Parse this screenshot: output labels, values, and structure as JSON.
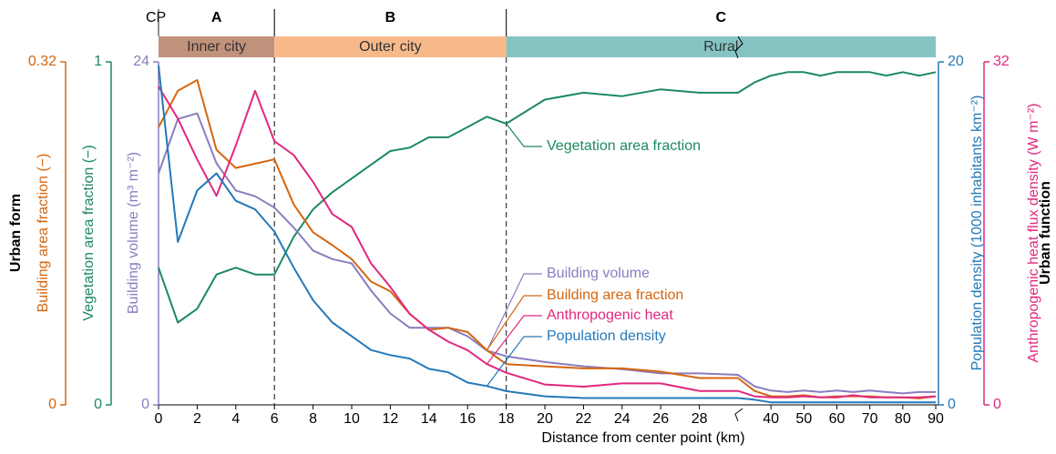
{
  "chart_data": {
    "type": "line",
    "xlabel": "Distance from center point (km)",
    "origin_label": "CP",
    "group_labels": {
      "left": "Urban form",
      "right": "Urban function"
    },
    "xlim": [
      0,
      90
    ],
    "x_segments": [
      [
        0,
        30
      ],
      [
        30,
        90
      ]
    ],
    "xticks": [
      0,
      2,
      4,
      6,
      8,
      10,
      12,
      14,
      16,
      18,
      20,
      22,
      24,
      26,
      28,
      40,
      50,
      60,
      70,
      80,
      90
    ],
    "regions": [
      {
        "label": "A",
        "name": "Inner city",
        "range": [
          0,
          6
        ],
        "color": "#c0917b"
      },
      {
        "label": "B",
        "name": "Outer city",
        "range": [
          6,
          18
        ],
        "color": "#f8b98a"
      },
      {
        "label": "C",
        "name": "Rural",
        "range": [
          18,
          90
        ],
        "color": "#86c4c4"
      }
    ],
    "axes": [
      {
        "label": "Building area fraction (−)",
        "ylim": [
          0,
          0.32
        ],
        "yticks": [
          0,
          0.32
        ],
        "color": "#d5660f"
      },
      {
        "label": "Vegetation area fraction (−)",
        "ylim": [
          0,
          1
        ],
        "yticks": [
          0,
          1
        ],
        "color": "#1c8a5e"
      },
      {
        "label": "Building volume (m³ m⁻²)",
        "ylim": [
          0,
          24
        ],
        "yticks": [
          0,
          24
        ],
        "color": "#8c7cbf"
      },
      {
        "label": "Population density (1000 inhabitants km⁻²)",
        "ylim": [
          0,
          20
        ],
        "yticks": [
          0,
          20
        ],
        "color": "#2479b8"
      },
      {
        "label": "Anthropogenic heat flux density (W m⁻²)",
        "ylim": [
          0,
          32
        ],
        "yticks": [
          0,
          32
        ],
        "color": "#e0287f"
      }
    ],
    "x": [
      0,
      1,
      2,
      3,
      4,
      5,
      6,
      7,
      8,
      9,
      10,
      11,
      12,
      13,
      14,
      15,
      16,
      17,
      18,
      20,
      22,
      24,
      26,
      28,
      30,
      35,
      40,
      45,
      50,
      55,
      60,
      65,
      70,
      75,
      80,
      85,
      90
    ],
    "series": [
      {
        "name": "Vegetation area fraction",
        "color": "#1c8a5e",
        "axis": 1,
        "values": [
          0.4,
          0.24,
          0.28,
          0.38,
          0.4,
          0.38,
          0.38,
          0.49,
          0.57,
          0.62,
          0.66,
          0.7,
          0.74,
          0.75,
          0.78,
          0.78,
          0.81,
          0.84,
          0.82,
          0.89,
          0.91,
          0.9,
          0.92,
          0.91,
          0.91,
          0.94,
          0.96,
          0.97,
          0.97,
          0.96,
          0.97,
          0.97,
          0.97,
          0.96,
          0.97,
          0.96,
          0.97
        ]
      },
      {
        "name": "Building volume",
        "color": "#8c7cbf",
        "axis": 2,
        "values": [
          16.2,
          20,
          20.4,
          16.9,
          15,
          14.6,
          13.8,
          12.4,
          10.8,
          10.2,
          9.9,
          8,
          6.4,
          5.4,
          5.4,
          5.4,
          4.8,
          3.8,
          3.4,
          3.0,
          2.7,
          2.5,
          2.2,
          2.2,
          2.1,
          1.3,
          1,
          0.9,
          1,
          0.9,
          1,
          0.9,
          1,
          0.9,
          0.8,
          0.9,
          0.9
        ]
      },
      {
        "name": "Building area fraction",
        "color": "#d5660f",
        "axis": 0,
        "values": [
          0.259,
          0.293,
          0.303,
          0.238,
          0.221,
          0.225,
          0.229,
          0.187,
          0.161,
          0.149,
          0.136,
          0.115,
          0.106,
          0.085,
          0.07,
          0.072,
          0.068,
          0.051,
          0.038,
          0.036,
          0.034,
          0.034,
          0.031,
          0.025,
          0.025,
          0.013,
          0.008,
          0.008,
          0.009,
          0.007,
          0.008,
          0.008,
          0.008,
          0.007,
          0.007,
          0.006,
          0.008
        ]
      },
      {
        "name": "Anthropogenic heat",
        "color": "#e0287f",
        "axis": 4,
        "values": [
          29.7,
          26.7,
          22.9,
          19.5,
          24.2,
          29.3,
          24.6,
          23.3,
          20.8,
          17.8,
          16.6,
          13.2,
          11,
          8.5,
          7,
          5.9,
          5.1,
          3.8,
          3,
          1.9,
          1.7,
          2,
          2,
          1.3,
          1.3,
          0.8,
          0.7,
          0.7,
          0.8,
          0.7,
          0.7,
          0.9,
          0.7,
          0.7,
          0.7,
          0.7,
          0.8
        ]
      },
      {
        "name": "Population density",
        "color": "#2479b8",
        "axis": 3,
        "values": [
          19.8,
          9.5,
          12.5,
          13.5,
          11.9,
          11.4,
          10.1,
          8,
          6.1,
          4.8,
          4,
          3.2,
          2.9,
          2.7,
          2.1,
          1.9,
          1.3,
          1.1,
          0.8,
          0.5,
          0.4,
          0.4,
          0.4,
          0.4,
          0.4,
          0.3,
          0.15,
          0.15,
          0.15,
          0.15,
          0.15,
          0.15,
          0.15,
          0.15,
          0.15,
          0.15,
          0.15
        ]
      }
    ]
  }
}
